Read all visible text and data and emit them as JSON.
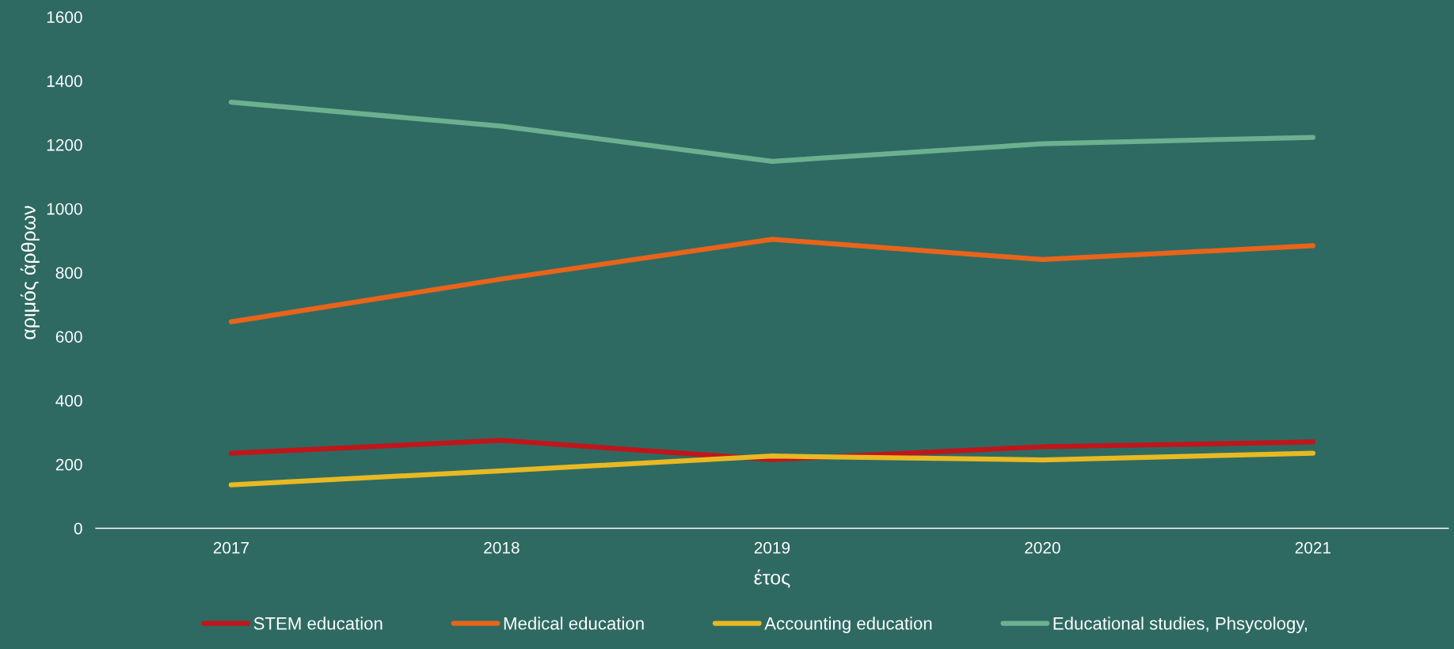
{
  "chart_data": {
    "type": "line",
    "xlabel": "έτος",
    "ylabel": "αριμός άρθρων",
    "categories": [
      "2017",
      "2018",
      "2019",
      "2020",
      "2021"
    ],
    "series": [
      {
        "name": "STEM education",
        "color": "#c0161b",
        "values": [
          235,
          275,
          215,
          255,
          270
        ]
      },
      {
        "name": "Medical education",
        "color": "#e8641a",
        "values": [
          646,
          780,
          904,
          841,
          884
        ]
      },
      {
        "name": "Accounting education",
        "color": "#e8b923",
        "values": [
          136,
          180,
          226,
          214,
          235
        ]
      },
      {
        "name": "Educational studies, Phsycology,",
        "color": "#6db08f",
        "values": [
          1333,
          1258,
          1148,
          1203,
          1223
        ]
      }
    ],
    "ylim": [
      0,
      1600
    ],
    "yticks": [
      0,
      200,
      400,
      600,
      800,
      1000,
      1200,
      1400,
      1600
    ],
    "grid": false,
    "legend": "bottom",
    "marker": "none",
    "line_style": "solid"
  }
}
